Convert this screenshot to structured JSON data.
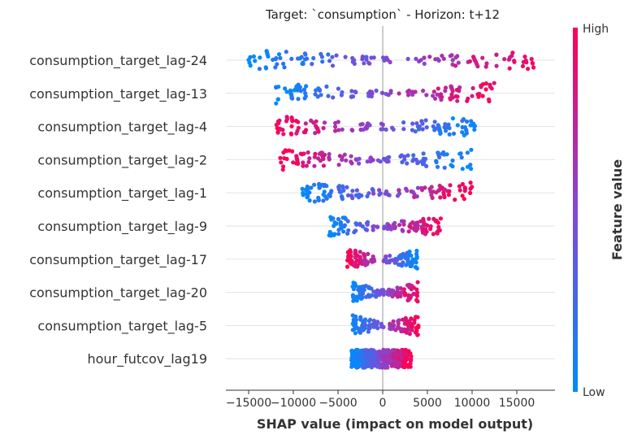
{
  "chart_data": {
    "type": "scatter",
    "subtype": "shap-beeswarm",
    "title": "Target: `consumption` - Horizon: t+12",
    "xlabel": "SHAP value (impact on model output)",
    "xlim": [
      -17000,
      19500
    ],
    "xticks": [
      -15000,
      -10000,
      -5000,
      0,
      5000,
      10000,
      15000
    ],
    "xtick_labels": [
      "−15000",
      "−10000",
      "−5000",
      "0",
      "5000",
      "10000",
      "15000"
    ],
    "grid": "horizontal",
    "colorbar": {
      "title": "Feature value",
      "high_label": "High",
      "low_label": "Low"
    },
    "colors": {
      "low": "#008bfb",
      "high": "#ff0052"
    },
    "features": [
      {
        "name": "consumption_target_lag-24",
        "min": -15000,
        "max": 17000,
        "low_side": "left"
      },
      {
        "name": "consumption_target_lag-13",
        "min": -12000,
        "max": 12500,
        "low_side": "left"
      },
      {
        "name": "consumption_target_lag-4",
        "min": -12000,
        "max": 10500,
        "low_side": "right"
      },
      {
        "name": "consumption_target_lag-2",
        "min": -11500,
        "max": 10000,
        "low_side": "right"
      },
      {
        "name": "consumption_target_lag-1",
        "min": -9000,
        "max": 10000,
        "low_side": "left"
      },
      {
        "name": "consumption_target_lag-9",
        "min": -6000,
        "max": 6500,
        "low_side": "left"
      },
      {
        "name": "consumption_target_lag-17",
        "min": -4000,
        "max": 4000,
        "low_side": "right"
      },
      {
        "name": "consumption_target_lag-20",
        "min": -3500,
        "max": 4000,
        "low_side": "left"
      },
      {
        "name": "consumption_target_lag-5",
        "min": -3500,
        "max": 4000,
        "low_side": "left"
      },
      {
        "name": "hour_futcov_lag19",
        "min": -3500,
        "max": 3200,
        "low_side": "left"
      }
    ]
  }
}
